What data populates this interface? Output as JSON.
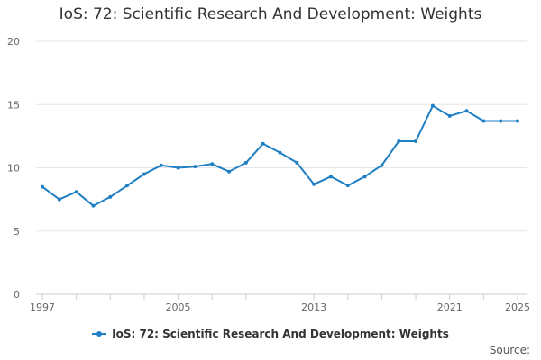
{
  "title": "IoS: 72: Scientific Research And Development: Weights",
  "source_label": "Source:",
  "colors": {
    "series": "#1f7fc4",
    "grid": "#e6e6e6",
    "axis": "#cccccc",
    "tick_text": "#666666"
  },
  "chart_data": {
    "type": "line",
    "title": "IoS: 72: Scientific Research And Development: Weights",
    "xlabel": "",
    "ylabel": "",
    "xlim": [
      1997,
      2025
    ],
    "ylim": [
      0,
      20
    ],
    "grid": true,
    "legend_position": "bottom-center",
    "x_tick_labels": [
      "1997",
      "2005",
      "2013",
      "2021",
      "2025"
    ],
    "y_tick_labels": [
      "0",
      "5",
      "10",
      "15",
      "20"
    ],
    "series": [
      {
        "name": "IoS: 72: Scientific Research And Development: Weights",
        "x": [
          1997,
          1998,
          1999,
          2000,
          2001,
          2002,
          2003,
          2004,
          2005,
          2006,
          2007,
          2008,
          2009,
          2010,
          2011,
          2012,
          2013,
          2014,
          2015,
          2016,
          2017,
          2018,
          2019,
          2020,
          2021,
          2022,
          2023,
          2024,
          2025
        ],
        "values": [
          8.5,
          7.5,
          8.1,
          7.0,
          7.7,
          8.6,
          9.5,
          10.2,
          10.0,
          10.1,
          10.3,
          9.7,
          10.4,
          11.9,
          11.2,
          10.4,
          8.7,
          9.3,
          8.6,
          9.3,
          10.2,
          12.1,
          12.1,
          14.9,
          14.1,
          14.5,
          13.7,
          13.7,
          13.7
        ]
      }
    ]
  }
}
